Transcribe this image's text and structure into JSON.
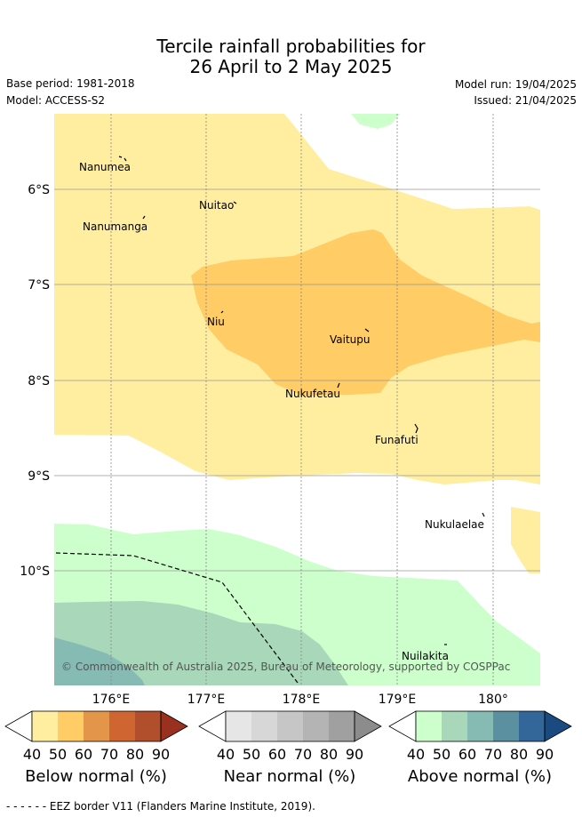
{
  "title": {
    "line1": "Tercile rainfall probabilities for",
    "line2": "26 April to 2 May 2025"
  },
  "meta": {
    "base_period": "Base period: 1981-2018",
    "model": "Model: ACCESS-S2",
    "model_run": "Model run: 19/04/2025",
    "issued": "Issued: 21/04/2025"
  },
  "map": {
    "lat_labels": [
      "6°S",
      "7°S",
      "8°S",
      "9°S",
      "10°S"
    ],
    "lon_labels": [
      "176°E",
      "177°E",
      "178°E",
      "179°E",
      "180°"
    ],
    "places": [
      "Nanumea",
      "Nuitao",
      "Nanumanga",
      "Niu",
      "Vaitupu",
      "Nukufetau",
      "Funafuti",
      "Nukulaelae",
      "Nuilakita"
    ],
    "copyright": "© Commonwealth of Australia 2025, Bureau of Meteorology, supported by COSPPac"
  },
  "colorbars": [
    {
      "title": "Below normal (%)",
      "ticks": [
        "40",
        "50",
        "60",
        "70",
        "80",
        "90"
      ],
      "colors": [
        "#ffeea0",
        "#ffcc66",
        "#e3964a",
        "#cf6632",
        "#b14e2c",
        "#9a3020"
      ]
    },
    {
      "title": "Near normal (%)",
      "ticks": [
        "40",
        "50",
        "60",
        "70",
        "80",
        "90"
      ],
      "colors": [
        "#e6e6e6",
        "#d7d7d7",
        "#c6c6c6",
        "#b4b4b4",
        "#a0a0a0",
        "#8c8c8c"
      ]
    },
    {
      "title": "Above normal (%)",
      "ticks": [
        "40",
        "50",
        "60",
        "70",
        "80",
        "90"
      ],
      "colors": [
        "#ccffcc",
        "#a8d8b9",
        "#86bbb3",
        "#5a90a0",
        "#336699",
        "#1a4a80"
      ]
    }
  ],
  "footnote": "- -  - -  - - EEZ border V11 (Flanders Marine Institute, 2019).",
  "colors": {
    "below40": "#ffeea0",
    "below50": "#ffcc66",
    "above40": "#ccffcc",
    "above50": "#a8d8b9",
    "above60": "#86bbb3"
  }
}
